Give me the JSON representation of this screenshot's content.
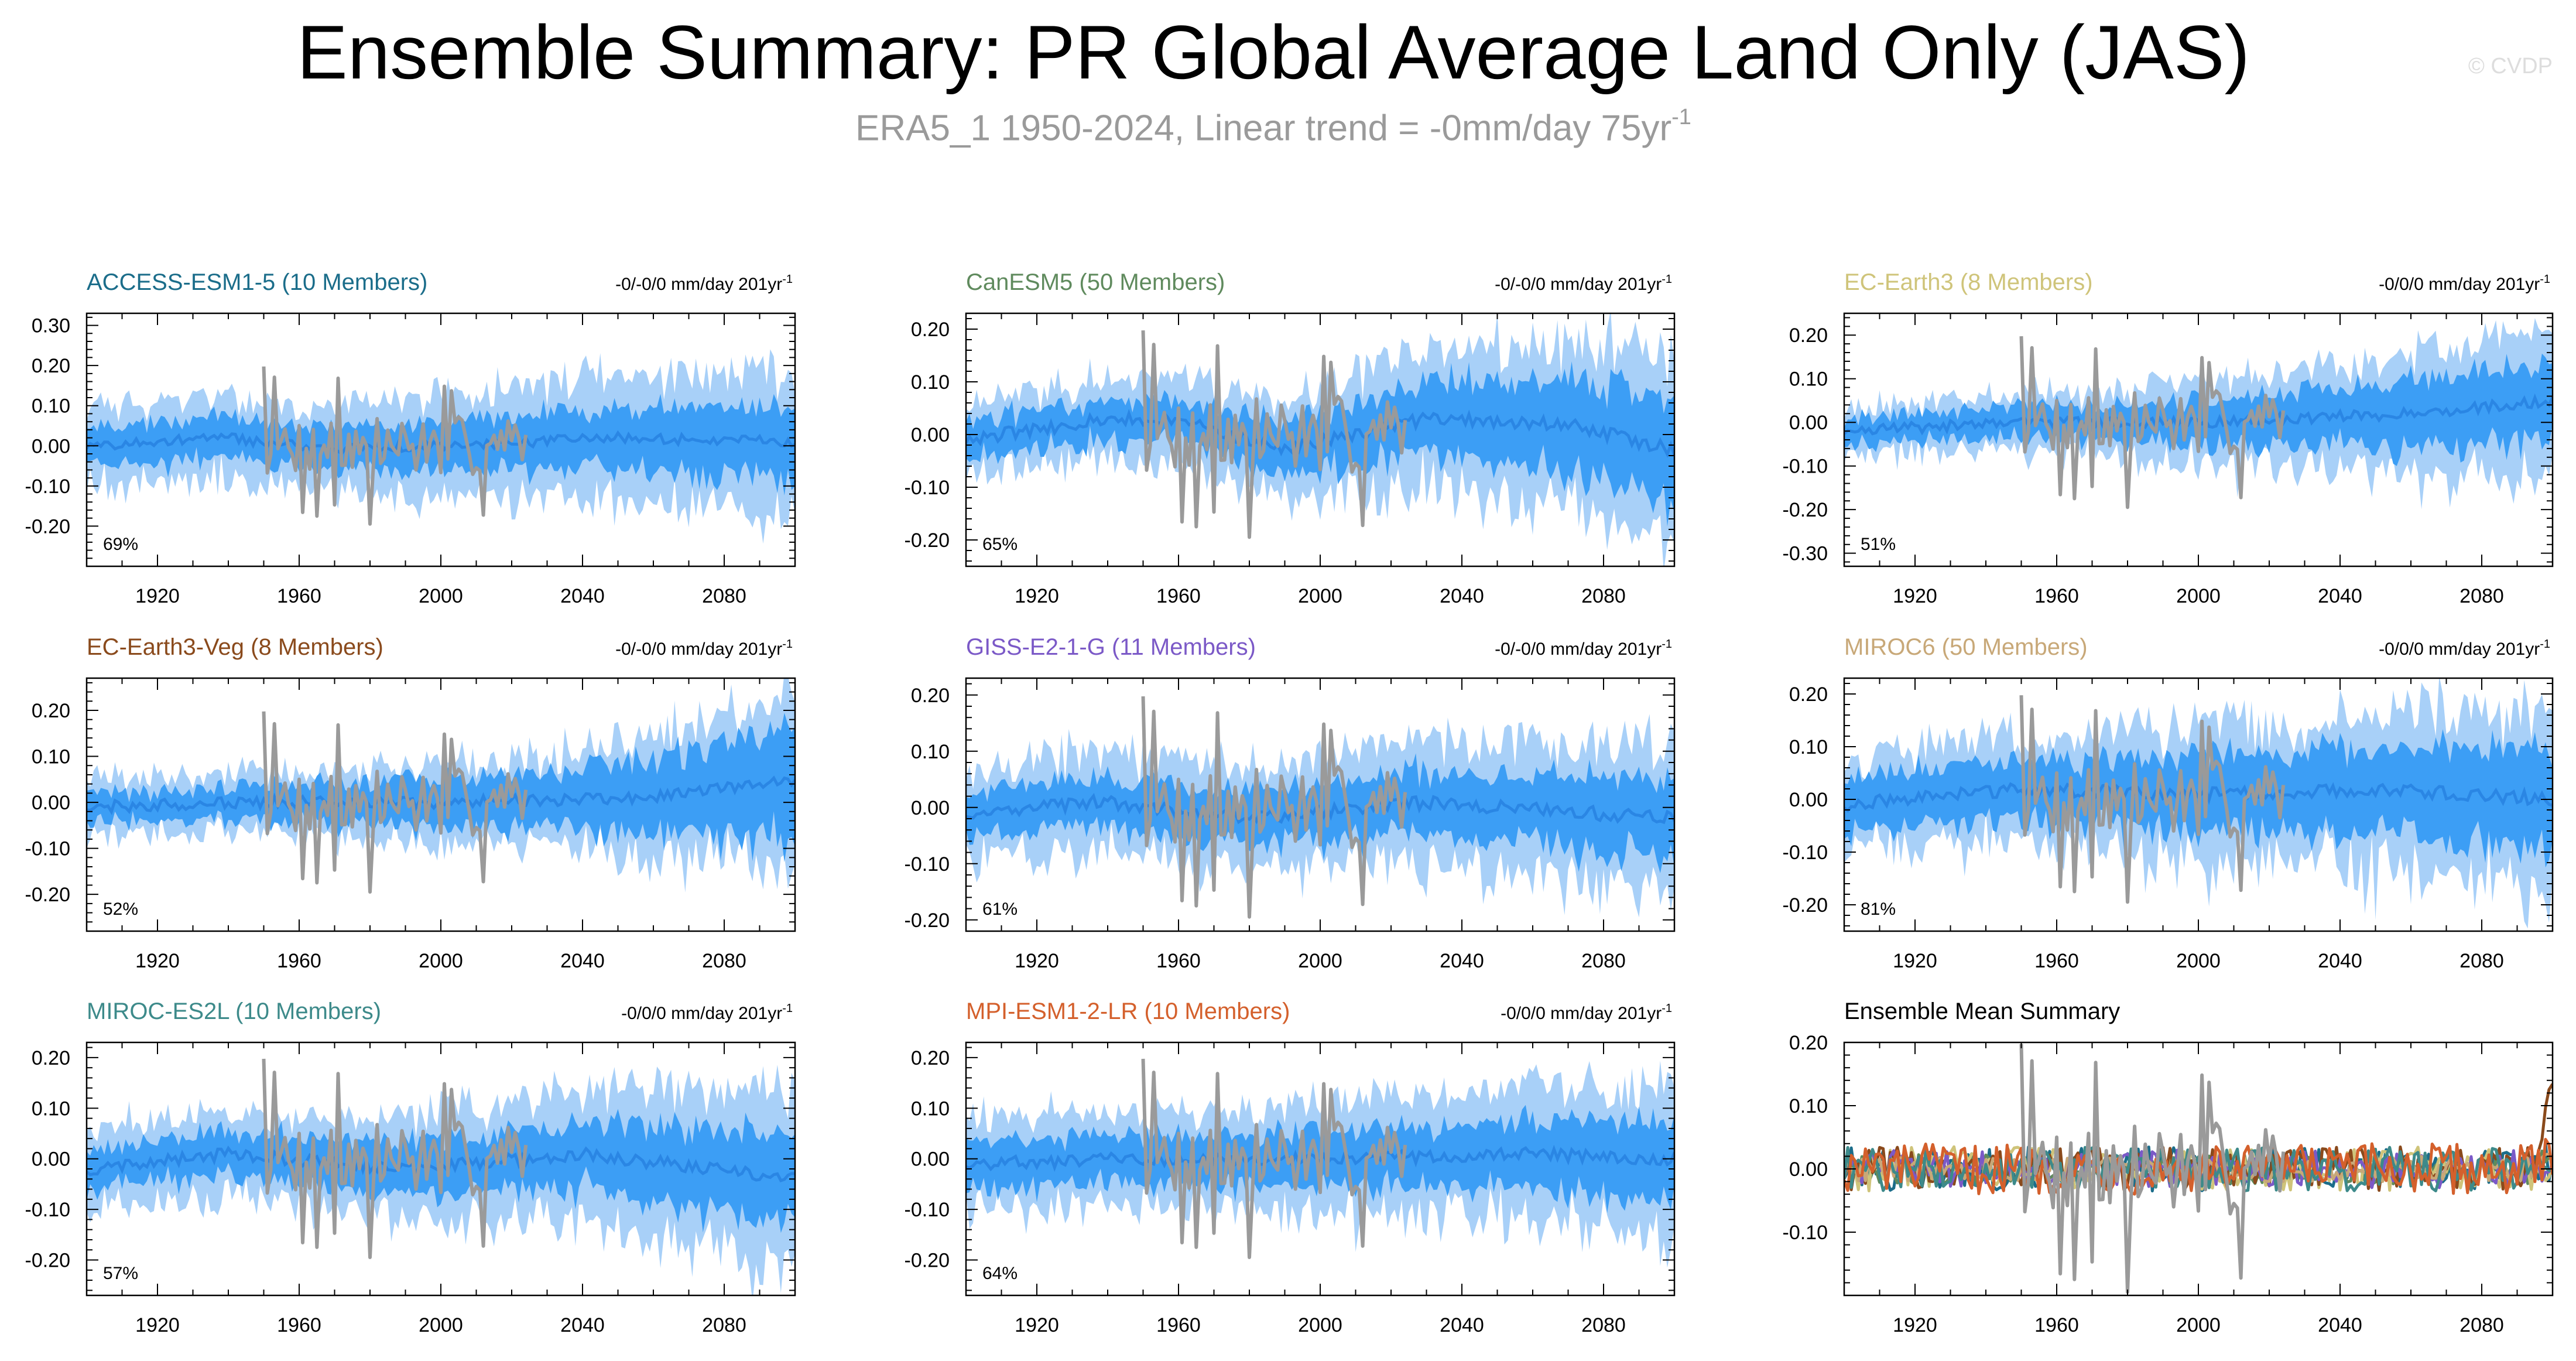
{
  "figure": {
    "title": "Ensemble Summary: PR Global Average Land Only (JAS)",
    "subtitle_main": "ERA5_1 1950-2024, Linear trend = -0mm/day 75yr",
    "subtitle_sup": "-1",
    "copyright": "© CVDP"
  },
  "colors": {
    "spread_outer": "#a8d0f8",
    "spread_inner": "#3c9ef5",
    "ensemble_mean": "#2a86e4",
    "observations": "#9a9a9a",
    "axis": "#000000"
  },
  "chart_data": [
    {
      "type": "area",
      "title": "ACCESS-ESM1-5 (10 Members)",
      "title_color": "#1b6d8a",
      "trend_label": "-0/-0/0 mm/day 201yr",
      "trend_sup": "-1",
      "percent_label": "69%",
      "xlim": [
        1900,
        2100
      ],
      "ylim": [
        -0.3,
        0.33
      ],
      "yticks": [
        -0.2,
        -0.1,
        0.0,
        0.1,
        0.2,
        0.3
      ],
      "ytick_labels": [
        "-0.20",
        "-0.10",
        "0.00",
        "0.10",
        "0.20",
        "0.30"
      ],
      "xticks": [
        1920,
        1960,
        2000,
        2040,
        2080
      ],
      "xtick_labels": [
        "1920",
        "1960",
        "2000",
        "2040",
        "2080"
      ],
      "spread_outer_amplitude": [
        0.1,
        0.1,
        0.15,
        0.17
      ],
      "spread_inner_amplitude": [
        0.05,
        0.05,
        0.07,
        0.09
      ],
      "mean_curve": [
        [
          1900,
          0.0
        ],
        [
          1940,
          0.02
        ],
        [
          1970,
          -0.01
        ],
        [
          2000,
          0.0
        ],
        [
          2050,
          0.02
        ],
        [
          2100,
          0.01
        ]
      ],
      "obs_range": [
        1950,
        2024
      ],
      "obs_amplitude": 0.075,
      "seed": 11
    },
    {
      "type": "area",
      "title": "CanESM5 (50 Members)",
      "title_color": "#5f8a5d",
      "trend_label": "-0/-0/0 mm/day 201yr",
      "trend_sup": "-1",
      "percent_label": "65%",
      "xlim": [
        1900,
        2100
      ],
      "ylim": [
        -0.25,
        0.23
      ],
      "yticks": [
        -0.2,
        -0.1,
        0.0,
        0.1,
        0.2
      ],
      "ytick_labels": [
        "-0.20",
        "-0.10",
        "0.00",
        "0.10",
        "0.20"
      ],
      "xticks": [
        1920,
        1960,
        2000,
        2040,
        2080
      ],
      "xtick_labels": [
        "1920",
        "1960",
        "2000",
        "2040",
        "2080"
      ],
      "spread_outer_amplitude": [
        0.07,
        0.08,
        0.13,
        0.18
      ],
      "spread_inner_amplitude": [
        0.035,
        0.04,
        0.07,
        0.1
      ],
      "mean_curve": [
        [
          1900,
          -0.01
        ],
        [
          1940,
          0.03
        ],
        [
          1960,
          0.03
        ],
        [
          1990,
          -0.03
        ],
        [
          2030,
          0.03
        ],
        [
          2070,
          0.02
        ],
        [
          2100,
          -0.03
        ]
      ],
      "obs_range": [
        1950,
        2024
      ],
      "obs_amplitude": 0.075,
      "seed": 23
    },
    {
      "type": "area",
      "title": "EC-Earth3 (8 Members)",
      "title_color": "#cfc47a",
      "trend_label": "-0/0/0 mm/day 201yr",
      "trend_sup": "-1",
      "percent_label": "51%",
      "xlim": [
        1900,
        2100
      ],
      "ylim": [
        -0.33,
        0.25
      ],
      "yticks": [
        -0.3,
        -0.2,
        -0.1,
        0.0,
        0.1,
        0.2
      ],
      "ytick_labels": [
        "-0.30",
        "-0.20",
        "-0.10",
        "0.00",
        "0.10",
        "0.20"
      ],
      "xticks": [
        1920,
        1960,
        2000,
        2040,
        2080
      ],
      "xtick_labels": [
        "1920",
        "1960",
        "2000",
        "2040",
        "2080"
      ],
      "spread_outer_amplitude": [
        0.05,
        0.07,
        0.11,
        0.17
      ],
      "spread_inner_amplitude": [
        0.03,
        0.04,
        0.06,
        0.1
      ],
      "mean_curve": [
        [
          1900,
          -0.02
        ],
        [
          1950,
          0.0
        ],
        [
          2000,
          0.0
        ],
        [
          2060,
          0.02
        ],
        [
          2100,
          0.05
        ]
      ],
      "obs_range": [
        1950,
        2024
      ],
      "obs_amplitude": 0.075,
      "seed": 37
    },
    {
      "type": "area",
      "title": "EC-Earth3-Veg (8 Members)",
      "title_color": "#8a4a1c",
      "trend_label": "-0/-0/0 mm/day 201yr",
      "trend_sup": "-1",
      "percent_label": "52%",
      "xlim": [
        1900,
        2100
      ],
      "ylim": [
        -0.28,
        0.27
      ],
      "yticks": [
        -0.2,
        -0.1,
        0.0,
        0.1,
        0.2
      ],
      "ytick_labels": [
        "-0.20",
        "-0.10",
        "0.00",
        "0.10",
        "0.20"
      ],
      "xticks": [
        1920,
        1960,
        2000,
        2040,
        2080
      ],
      "xtick_labels": [
        "1920",
        "1960",
        "2000",
        "2040",
        "2080"
      ],
      "spread_outer_amplitude": [
        0.06,
        0.07,
        0.1,
        0.18
      ],
      "spread_inner_amplitude": [
        0.03,
        0.04,
        0.06,
        0.12
      ],
      "mean_curve": [
        [
          1900,
          -0.01
        ],
        [
          1950,
          0.0
        ],
        [
          2000,
          0.0
        ],
        [
          2060,
          0.01
        ],
        [
          2100,
          0.05
        ]
      ],
      "obs_range": [
        1950,
        2024
      ],
      "obs_amplitude": 0.075,
      "seed": 41
    },
    {
      "type": "area",
      "title": "GISS-E2-1-G (11 Members)",
      "title_color": "#7b59c7",
      "trend_label": "-0/-0/0 mm/day 201yr",
      "trend_sup": "-1",
      "percent_label": "61%",
      "xlim": [
        1900,
        2100
      ],
      "ylim": [
        -0.22,
        0.23
      ],
      "yticks": [
        -0.2,
        -0.1,
        0.0,
        0.1,
        0.2
      ],
      "ytick_labels": [
        "-0.20",
        "-0.10",
        "0.00",
        "0.10",
        "0.20"
      ],
      "xticks": [
        1920,
        1960,
        2000,
        2040,
        2080
      ],
      "xtick_labels": [
        "1920",
        "1960",
        "2000",
        "2040",
        "2080"
      ],
      "spread_outer_amplitude": [
        0.08,
        0.09,
        0.11,
        0.13
      ],
      "spread_inner_amplitude": [
        0.04,
        0.045,
        0.055,
        0.07
      ],
      "mean_curve": [
        [
          1900,
          -0.01
        ],
        [
          1940,
          0.01
        ],
        [
          1980,
          -0.02
        ],
        [
          2030,
          0.01
        ],
        [
          2100,
          -0.02
        ]
      ],
      "obs_range": [
        1950,
        2024
      ],
      "obs_amplitude": 0.075,
      "seed": 53
    },
    {
      "type": "area",
      "title": "MIROC6 (50 Members)",
      "title_color": "#c8a878",
      "trend_label": "-0/0/0 mm/day 201yr",
      "trend_sup": "-1",
      "percent_label": "81%",
      "xlim": [
        1900,
        2100
      ],
      "ylim": [
        -0.25,
        0.23
      ],
      "yticks": [
        -0.2,
        -0.1,
        0.0,
        0.1,
        0.2
      ],
      "ytick_labels": [
        "-0.20",
        "-0.10",
        "0.00",
        "0.10",
        "0.20"
      ],
      "xticks": [
        1920,
        1960,
        2000,
        2040,
        2080
      ],
      "xtick_labels": [
        "1920",
        "1960",
        "2000",
        "2040",
        "2080"
      ],
      "spread_outer_amplitude": [
        0.09,
        0.11,
        0.14,
        0.17
      ],
      "spread_inner_amplitude": [
        0.05,
        0.06,
        0.08,
        0.1
      ],
      "mean_curve": [
        [
          1900,
          -0.01
        ],
        [
          1950,
          0.02
        ],
        [
          2000,
          0.01
        ],
        [
          2050,
          0.02
        ],
        [
          2100,
          0.0
        ]
      ],
      "obs_range": [
        1950,
        2024
      ],
      "obs_amplitude": 0.075,
      "seed": 67
    },
    {
      "type": "area",
      "title": "MIROC-ES2L (10 Members)",
      "title_color": "#3d8a8a",
      "trend_label": "-0/0/0 mm/day 201yr",
      "trend_sup": "-1",
      "percent_label": "57%",
      "xlim": [
        1900,
        2100
      ],
      "ylim": [
        -0.27,
        0.23
      ],
      "yticks": [
        -0.2,
        -0.1,
        0.0,
        0.1,
        0.2
      ],
      "ytick_labels": [
        "-0.20",
        "-0.10",
        "0.00",
        "0.10",
        "0.20"
      ],
      "xticks": [
        1920,
        1960,
        2000,
        2040,
        2080
      ],
      "xtick_labels": [
        "1920",
        "1960",
        "2000",
        "2040",
        "2080"
      ],
      "spread_outer_amplitude": [
        0.08,
        0.09,
        0.12,
        0.17
      ],
      "spread_inner_amplitude": [
        0.04,
        0.045,
        0.06,
        0.09
      ],
      "mean_curve": [
        [
          1900,
          -0.02
        ],
        [
          1940,
          0.01
        ],
        [
          1990,
          -0.02
        ],
        [
          2040,
          0.01
        ],
        [
          2100,
          -0.04
        ]
      ],
      "obs_range": [
        1950,
        2024
      ],
      "obs_amplitude": 0.075,
      "seed": 79
    },
    {
      "type": "area",
      "title": "MPI-ESM1-2-LR (10 Members)",
      "title_color": "#d4602c",
      "trend_label": "-0/0/0 mm/day 201yr",
      "trend_sup": "-1",
      "percent_label": "64%",
      "xlim": [
        1900,
        2100
      ],
      "ylim": [
        -0.27,
        0.23
      ],
      "yticks": [
        -0.2,
        -0.1,
        0.0,
        0.1,
        0.2
      ],
      "ytick_labels": [
        "-0.20",
        "-0.10",
        "0.00",
        "0.10",
        "0.20"
      ],
      "xticks": [
        1920,
        1960,
        2000,
        2040,
        2080
      ],
      "xtick_labels": [
        "1920",
        "1960",
        "2000",
        "2040",
        "2080"
      ],
      "spread_outer_amplitude": [
        0.09,
        0.09,
        0.12,
        0.15
      ],
      "spread_inner_amplitude": [
        0.045,
        0.05,
        0.06,
        0.08
      ],
      "mean_curve": [
        [
          1900,
          -0.01
        ],
        [
          1950,
          0.0
        ],
        [
          2000,
          0.0
        ],
        [
          2060,
          0.01
        ],
        [
          2100,
          0.0
        ]
      ],
      "obs_range": [
        1950,
        2024
      ],
      "obs_amplitude": 0.075,
      "seed": 89
    },
    {
      "type": "line",
      "title": "Ensemble Mean Summary",
      "title_color": "#000000",
      "xlim": [
        1900,
        2100
      ],
      "ylim": [
        -0.2,
        0.2
      ],
      "yticks": [
        -0.1,
        0.0,
        0.1,
        0.2
      ],
      "ytick_labels": [
        "-0.10",
        "0.00",
        "0.10",
        "0.20"
      ],
      "xticks": [
        1920,
        1960,
        2000,
        2040,
        2080
      ],
      "xtick_labels": [
        "1920",
        "1960",
        "2000",
        "2040",
        "2080"
      ],
      "series": [
        {
          "name": "ACCESS-ESM1-5",
          "color": "#1b6d8a",
          "amplitude": 0.035,
          "seed": 101
        },
        {
          "name": "CanESM5",
          "color": "#5f8a5d",
          "amplitude": 0.025,
          "seed": 102
        },
        {
          "name": "EC-Earth3",
          "color": "#cfc47a",
          "amplitude": 0.035,
          "seed": 103
        },
        {
          "name": "EC-Earth3-Veg",
          "color": "#8a4a1c",
          "amplitude": 0.035,
          "seed": 104
        },
        {
          "name": "GISS-E2-1-G",
          "color": "#7b59c7",
          "amplitude": 0.03,
          "seed": 105
        },
        {
          "name": "MIROC6",
          "color": "#c8a878",
          "amplitude": 0.02,
          "seed": 106
        },
        {
          "name": "MIROC-ES2L",
          "color": "#3d8a8a",
          "amplitude": 0.035,
          "seed": 107
        },
        {
          "name": "MPI-ESM1-2-LR",
          "color": "#d4602c",
          "amplitude": 0.04,
          "seed": 108
        }
      ],
      "obs_range": [
        1950,
        2024
      ],
      "obs_amplitude": 0.075
    }
  ]
}
